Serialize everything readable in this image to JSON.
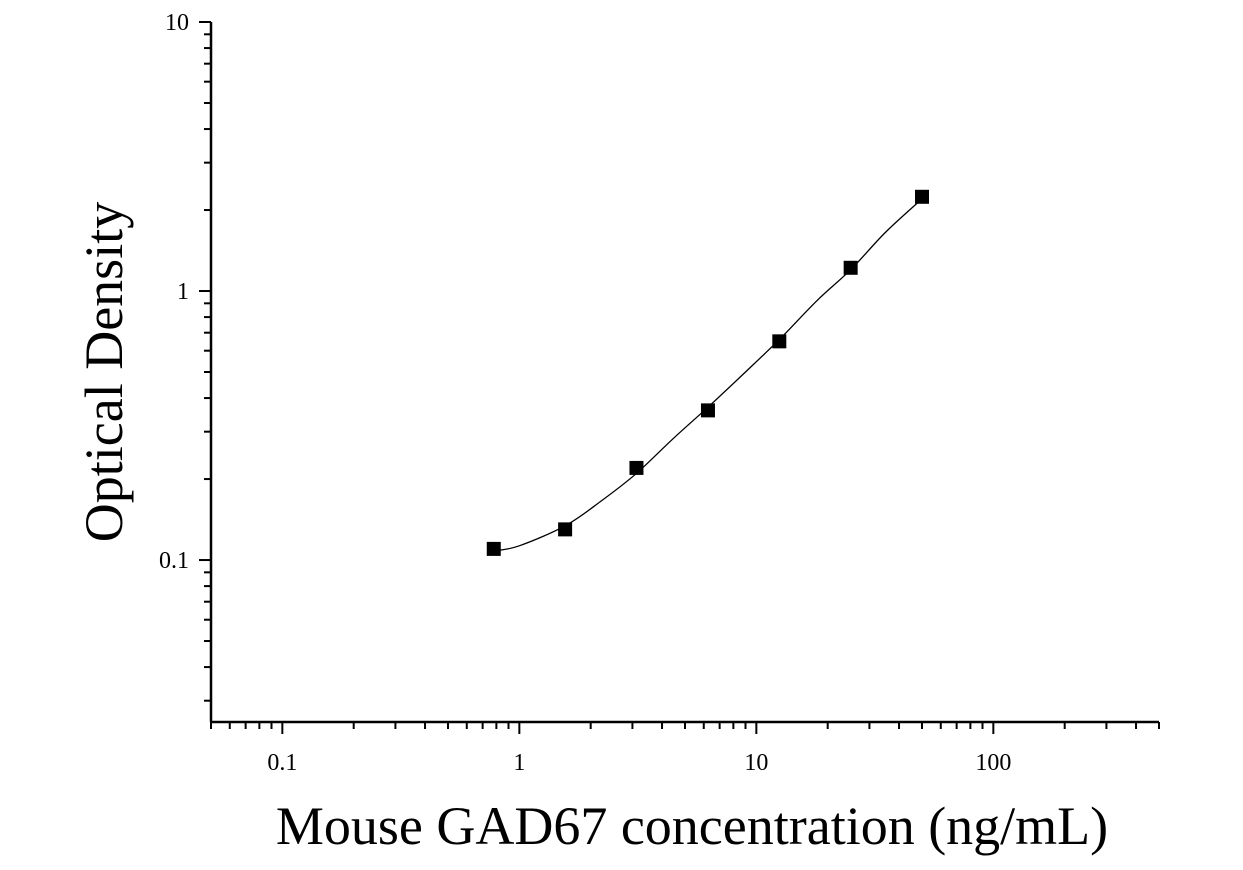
{
  "chart_data": {
    "type": "scatter",
    "title": "",
    "xlabel": "Mouse GAD67 concentration (ng/mL)",
    "ylabel": "Optical Density",
    "x_scale": "log",
    "y_scale": "log",
    "xlim": [
      0.05,
      500
    ],
    "ylim": [
      0.025,
      10
    ],
    "x_tick_labels": [
      {
        "value": 0.1,
        "label": "0.1"
      },
      {
        "value": 1,
        "label": "1"
      },
      {
        "value": 10,
        "label": "10"
      },
      {
        "value": 100,
        "label": "100"
      }
    ],
    "y_tick_labels": [
      {
        "value": 0.1,
        "label": "0.1"
      },
      {
        "value": 1,
        "label": "1"
      },
      {
        "value": 10,
        "label": "10"
      }
    ],
    "grid": false,
    "series": [
      {
        "marker": "square",
        "color": "#000000",
        "x": [
          0.78,
          1.56,
          3.12,
          6.25,
          12.5,
          25,
          50
        ],
        "y": [
          0.11,
          0.13,
          0.22,
          0.36,
          0.65,
          1.22,
          2.24
        ]
      }
    ],
    "fit_curve": {
      "x": [
        0.78,
        1.0,
        1.56,
        2.2,
        3.12,
        4.5,
        6.25,
        9.0,
        12.5,
        18,
        25,
        35,
        50
      ],
      "y": [
        0.108,
        0.113,
        0.134,
        0.165,
        0.21,
        0.285,
        0.37,
        0.5,
        0.66,
        0.92,
        1.2,
        1.65,
        2.2
      ]
    }
  }
}
